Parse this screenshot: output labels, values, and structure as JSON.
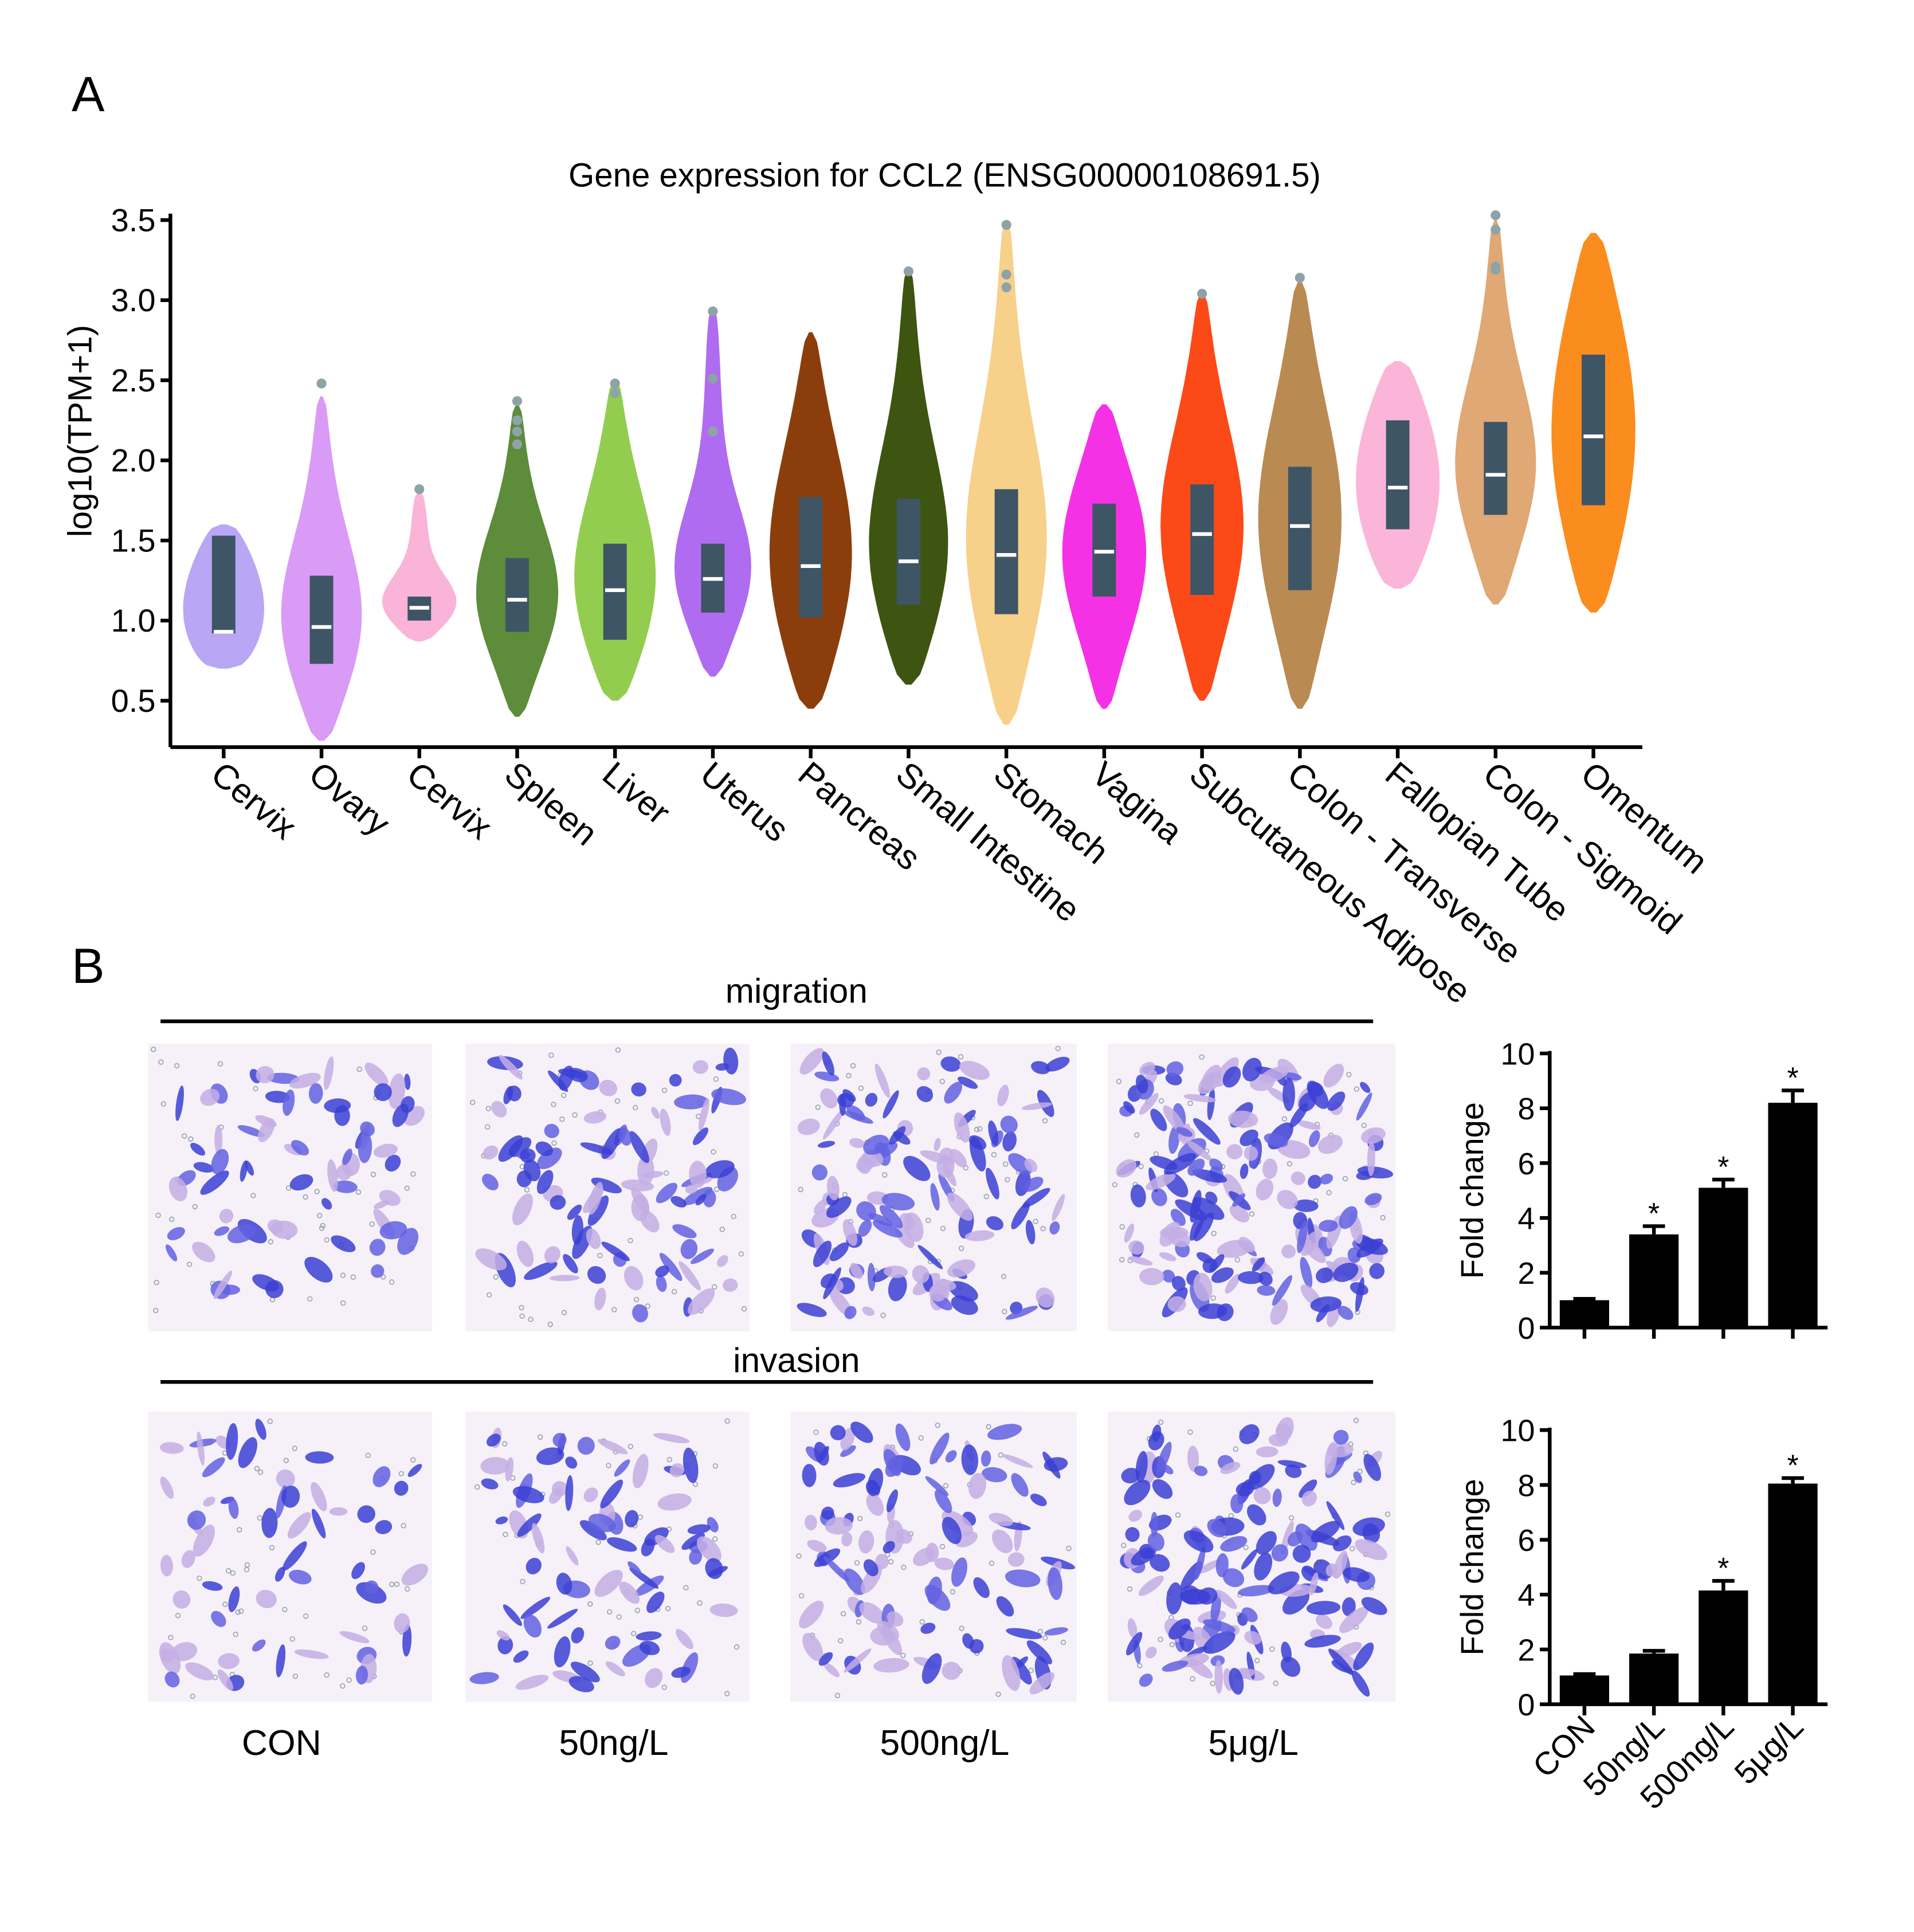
{
  "panel_labels": [
    "A",
    "B"
  ],
  "micrographs": {
    "rows": [
      "migration",
      "invasion"
    ],
    "columns": [
      "CON",
      "50ng/L",
      "500ng/L",
      "5μg/L"
    ]
  },
  "chart_data": [
    {
      "type": "violin",
      "title": "Gene expression for CCL2 (ENSG00000108691.5)",
      "ylabel": "log10(TPM+1)",
      "categories": [
        "Cervix",
        "Ovary",
        "Cervix",
        "Spleen",
        "Liver",
        "Uterus",
        "Pancreas",
        "Small Intestine",
        "Stomach",
        "Vagina",
        "Subcutaneous Adipose",
        "Colon - Transverse",
        "Fallopian Tube",
        "Colon - Sigmoid",
        "Omentum"
      ],
      "colors": [
        "#b9a6f5",
        "#d99bf5",
        "#f9b4d8",
        "#5d8c3a",
        "#93cd4f",
        "#b06cf0",
        "#8b3e0b",
        "#3d5510",
        "#f7d08a",
        "#f531e6",
        "#fb4a17",
        "#b98a52",
        "#fbb5d8",
        "#dfa874",
        "#fb8c1e"
      ],
      "min": [
        0.7,
        0.25,
        0.87,
        0.4,
        0.5,
        0.65,
        0.45,
        0.6,
        0.35,
        0.45,
        0.5,
        0.45,
        1.2,
        1.1,
        1.05
      ],
      "max": [
        1.6,
        2.4,
        1.8,
        2.35,
        2.5,
        2.95,
        2.8,
        3.2,
        3.5,
        2.35,
        3.05,
        3.12,
        2.62,
        3.5,
        3.42
      ],
      "q1": [
        0.92,
        0.73,
        1.0,
        0.93,
        0.88,
        1.05,
        1.02,
        1.1,
        1.04,
        1.15,
        1.16,
        1.19,
        1.57,
        1.66,
        1.72
      ],
      "median": [
        0.93,
        0.96,
        1.08,
        1.13,
        1.19,
        1.26,
        1.34,
        1.37,
        1.41,
        1.43,
        1.54,
        1.59,
        1.83,
        1.91,
        2.15
      ],
      "q3": [
        1.53,
        1.28,
        1.15,
        1.39,
        1.48,
        1.48,
        1.77,
        1.76,
        1.82,
        1.73,
        1.85,
        1.96,
        2.25,
        2.24,
        2.66
      ],
      "outliers": [
        [],
        [
          2.48
        ],
        [
          1.82
        ],
        [
          2.37,
          2.25,
          2.18,
          2.1
        ],
        [
          2.48,
          2.42
        ],
        [
          2.93,
          2.51,
          2.18
        ],
        [],
        [
          3.18
        ],
        [
          3.47,
          3.16,
          3.08
        ],
        [],
        [
          3.04
        ],
        [
          3.14
        ],
        [],
        [
          3.53,
          3.44,
          3.21,
          3.19
        ],
        []
      ],
      "ylim": [
        0.21,
        3.54
      ],
      "yticks": [
        0.5,
        {
          "value": 1,
          "label": "1.0"
        },
        1.5,
        {
          "value": 2,
          "label": "2.0"
        },
        2.5,
        {
          "value": 3,
          "label": "3.0"
        },
        3.5
      ],
      "box_color": "#3e5565",
      "outlier_color": "#8ea3a8"
    },
    {
      "type": "bar",
      "ylabel": "Fold change",
      "categories": [
        null,
        null,
        null,
        null
      ],
      "values": [
        1.0,
        3.4,
        5.1,
        8.2
      ],
      "errors": [
        0.05,
        0.3,
        0.3,
        0.45
      ],
      "significance": [
        null,
        "*",
        "*",
        "*"
      ],
      "color": "#000000",
      "ylim": [
        0,
        10
      ],
      "yticks": [
        0,
        2,
        4,
        6,
        8,
        10
      ]
    },
    {
      "type": "bar",
      "ylabel": "Fold change",
      "categories": [
        "CON",
        "50ng/L",
        "500ng/L",
        "5μg/L"
      ],
      "values": [
        1.05,
        1.85,
        4.15,
        8.05
      ],
      "errors": [
        0.05,
        0.1,
        0.35,
        0.2
      ],
      "significance": [
        null,
        null,
        "*",
        "*"
      ],
      "color": "#000000",
      "ylim": [
        0,
        10
      ],
      "yticks": [
        0,
        2,
        4,
        6,
        8,
        10
      ]
    }
  ]
}
